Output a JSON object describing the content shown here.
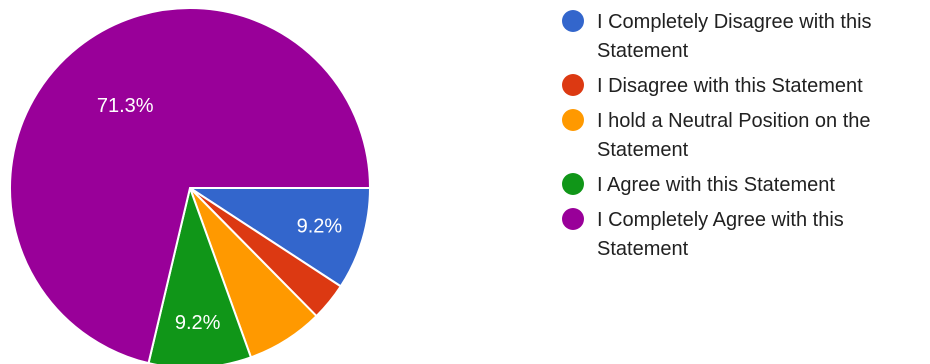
{
  "chart_data": {
    "type": "pie",
    "title": "",
    "slices": [
      {
        "name": "I Completely Disagree with this Statement",
        "value": 9.2,
        "label": "9.2%",
        "color": "#3366cc"
      },
      {
        "name": "I Disagree with this Statement",
        "value": 3.4,
        "label": "",
        "color": "#dc3912"
      },
      {
        "name": "I hold a Neutral Position on the Statement",
        "value": 6.9,
        "label": "",
        "color": "#ff9900"
      },
      {
        "name": "I Agree with this Statement",
        "value": 9.2,
        "label": "9.2%",
        "color": "#109618"
      },
      {
        "name": "I Completely Agree with this Statement",
        "value": 71.3,
        "label": "71.3%",
        "color": "#990099"
      }
    ],
    "start_angle_deg": 90,
    "direction": "clockwise",
    "legend_position": "right"
  }
}
